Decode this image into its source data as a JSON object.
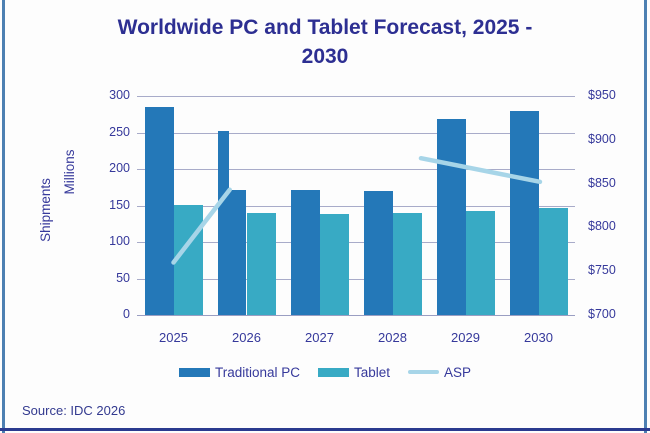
{
  "title": {
    "line1": "Worldwide PC and Tablet Forecast, 2025 -",
    "line2": "2030",
    "full": "Worldwide PC and Tablet Forecast, 2025 - 2030"
  },
  "source": {
    "text": "Source: IDC 2026"
  },
  "y_axis": {
    "label_line1": "Shipments",
    "label_line2": "Millions",
    "ticks": [
      300,
      250,
      200,
      150,
      100,
      50,
      0
    ]
  },
  "y2_axis": {
    "ticks": [
      "$950",
      "$900",
      "$850",
      "$800",
      "$750",
      "$700"
    ],
    "min": 700,
    "max": 950
  },
  "x_axis": {
    "categories": [
      "2025",
      "2026",
      "2027",
      "2028",
      "2029",
      "2030"
    ]
  },
  "legend": [
    {
      "label": "Traditional PC",
      "swatch": "rect",
      "color": "#2478b8"
    },
    {
      "label": "Tablet",
      "swatch": "rect",
      "color": "#38aac4"
    },
    {
      "label": "ASP",
      "swatch": "line",
      "color": "#a7d5e8"
    }
  ],
  "colors": {
    "pc_bar": "#2478b8",
    "tablet_bar": "#38aac4",
    "asp_line": "#a7d5e8",
    "title_text": "#2d2f92",
    "tick_text": "#36399b",
    "gridline": "#a8abc9",
    "frame_border": "#4d80b2",
    "bottom_rule": "#2b3a8f"
  },
  "chart_data": {
    "type": "bar+line",
    "title": "Worldwide PC and Tablet Forecast, 2025 - 2030",
    "categories": [
      "2025",
      "2026",
      "2027",
      "2028",
      "2029",
      "2030"
    ],
    "series": [
      {
        "name": "Traditional PC",
        "type": "bar",
        "axis": "left",
        "values": [
          285,
          252,
          171,
          170,
          268,
          279
        ]
      },
      {
        "name": "Tablet",
        "type": "bar",
        "axis": "left",
        "values": [
          151,
          140,
          138,
          140,
          142,
          147
        ]
      },
      {
        "name": "ASP",
        "type": "line",
        "axis": "right",
        "values_est": [
          760,
          843,
          null,
          null,
          871,
          852
        ]
      }
    ],
    "ylabel": "Shipments Millions",
    "ylim": [
      0,
      300
    ],
    "y2lim": [
      700,
      950
    ],
    "grid": true,
    "legend_position": "bottom",
    "asp_segments": [
      {
        "from": {
          "x_index": 0.0,
          "asp": 760
        },
        "to": {
          "x_index": 0.77,
          "asp": 843
        }
      },
      {
        "from": {
          "x_index": 3.39,
          "asp": 879
        },
        "to": {
          "x_index": 5.02,
          "asp": 852
        }
      }
    ],
    "pc_2026_artifact": {
      "year_index": 1,
      "full_value": 252,
      "clipped_value": 171,
      "full_width_fraction": 0.4,
      "note": "In the source image the 2026 Traditional PC bar only reaches 252 on its left portion; the right portion is drawn at 171."
    },
    "source": "Source: IDC 2026"
  }
}
